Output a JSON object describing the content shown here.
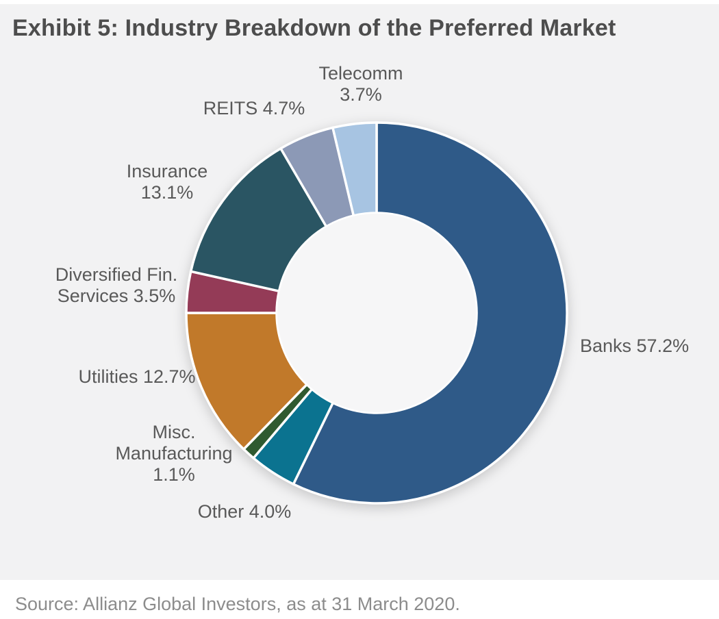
{
  "page": {
    "title": "Exhibit 5: Industry Breakdown of the Preferred Market",
    "source": "Source: Allianz Global Investors, as at 31 March 2020."
  },
  "chart_data": {
    "type": "pie",
    "subtype": "donut",
    "title": "Exhibit 5: Industry Breakdown of the Preferred Market",
    "unit": "%",
    "total": 100.0,
    "direction": "clockwise",
    "start_angle_deg_from_top": 0,
    "legend_position": "outside-callout-labels",
    "background_color": "#f2f2f3",
    "hole_color": "#f6f6f7",
    "separator_color": "#ffffff",
    "label_color": "#595959",
    "segments": [
      {
        "id": "banks",
        "label": "Banks",
        "value": 57.2,
        "color": "#2f5a88",
        "callout": "Banks 57.2%"
      },
      {
        "id": "other",
        "label": "Other",
        "value": 4.0,
        "color": "#0b7390",
        "callout": "Other 4.0%"
      },
      {
        "id": "misc-manufacturing",
        "label": "Misc. Manufacturing",
        "value": 1.1,
        "color": "#2f5a30",
        "callout": "Misc.\nManufacturing\n1.1%"
      },
      {
        "id": "utilities",
        "label": "Utilities",
        "value": 12.7,
        "color": "#c1792a",
        "callout": "Utilities 12.7%"
      },
      {
        "id": "diversified-fin-services",
        "label": "Diversified Fin. Services",
        "value": 3.5,
        "color": "#943b57",
        "callout": "Diversified Fin.\nServices 3.5%"
      },
      {
        "id": "insurance",
        "label": "Insurance",
        "value": 13.1,
        "color": "#2a5563",
        "callout": "Insurance\n13.1%"
      },
      {
        "id": "reits",
        "label": "REITS",
        "value": 4.7,
        "color": "#8c99b6",
        "callout": "REITS 4.7%"
      },
      {
        "id": "telecomm",
        "label": "Telecomm",
        "value": 3.7,
        "color": "#a7c4e2",
        "callout": "Telecomm\n3.7%"
      }
    ],
    "source": "Source: Allianz Global Investors, as at 31 March 2020."
  }
}
